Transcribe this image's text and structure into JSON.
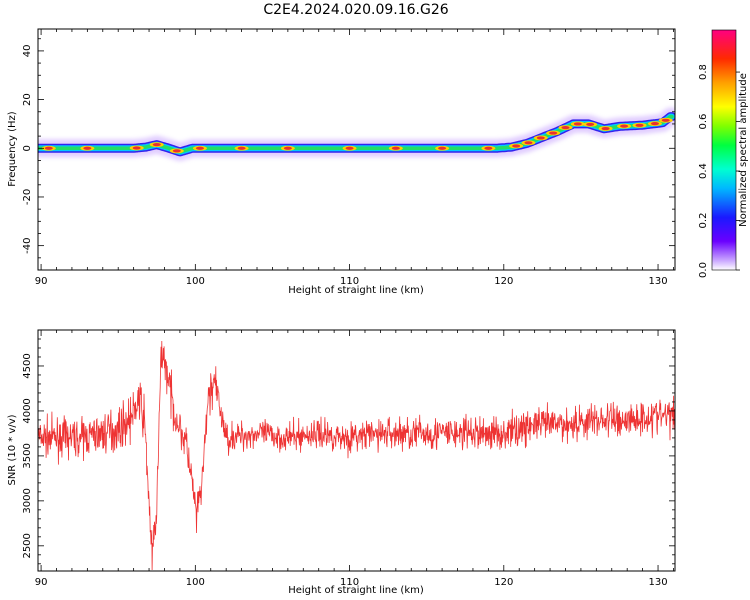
{
  "title": "C2E4.2024.020.09.16.G26",
  "colors": {
    "snr_line": "#ee3333",
    "ridge_outer": "#3322ee",
    "ridge_halo": "#c9a6ff",
    "ridge_mid": "#22dd66",
    "ridge_core": "#e83030",
    "axis": "#000000"
  },
  "chart_data": [
    {
      "type": "heatmap",
      "title": "C2E4.2024.020.09.16.G26",
      "xlabel": "Height of straight line (km)",
      "ylabel": "Frequency (Hz)",
      "xlim": [
        89.8,
        131.1
      ],
      "ylim": [
        -50,
        49
      ],
      "x_ticks": [
        90,
        100,
        110,
        120,
        130
      ],
      "y_ticks": [
        -40,
        -20,
        0,
        20,
        40
      ],
      "colorbar": {
        "label": "Normalized spectral amplitude",
        "range": [
          0,
          0.97
        ],
        "ticks": [
          0.0,
          0.2,
          0.4,
          0.6,
          0.8
        ],
        "colormap": "rainbow (white-violet-blue-cyan-green-yellow-orange-red-magenta)"
      },
      "ridge": {
        "description": "Frequency ridge of maximum spectral amplitude vs height",
        "x": [
          89.8,
          92,
          94,
          96,
          96.8,
          97.5,
          98.3,
          99.0,
          99.8,
          101,
          104,
          108,
          112,
          116,
          119.5,
          120.5,
          121.5,
          122.5,
          123.5,
          124.5,
          125.5,
          126.5,
          127.5,
          129,
          130.3,
          130.8
        ],
        "y": [
          0,
          0,
          0,
          0,
          0.5,
          1.5,
          0,
          -1.5,
          0,
          0,
          0,
          0,
          0,
          0,
          0,
          0.5,
          2,
          4.5,
          7,
          10,
          10,
          8,
          9,
          9.5,
          10.5,
          13
        ]
      }
    },
    {
      "type": "line",
      "xlabel": "Height of straight line (km)",
      "ylabel": "SNR (10 * v/v)",
      "xlim": [
        89.8,
        131.1
      ],
      "ylim": [
        2220,
        4900
      ],
      "x_ticks": [
        90,
        100,
        110,
        120,
        130
      ],
      "y_ticks": [
        2500,
        3000,
        3500,
        4000,
        4500
      ],
      "series": [
        {
          "description": "SNR envelope (noisy trace rendered around this mean with spread)",
          "x": [
            89.8,
            91,
            92.5,
            94,
            95,
            96,
            96.3,
            96.7,
            97.0,
            97.2,
            97.5,
            97.8,
            98.2,
            98.6,
            99.0,
            99.4,
            99.7,
            100.1,
            100.5,
            100.8,
            101.2,
            102,
            104,
            106,
            108,
            110,
            112,
            114,
            116,
            118,
            120,
            122,
            124,
            126,
            128,
            130,
            131.1
          ],
          "y": [
            3700,
            3700,
            3700,
            3750,
            3800,
            3950,
            4150,
            3900,
            3000,
            2350,
            2900,
            4700,
            4400,
            4000,
            3800,
            3650,
            3300,
            2800,
            3300,
            4100,
            4350,
            3700,
            3750,
            3700,
            3750,
            3700,
            3750,
            3750,
            3750,
            3750,
            3750,
            3850,
            3850,
            3900,
            3900,
            3950,
            3950
          ],
          "spread": [
            180,
            180,
            180,
            200,
            200,
            220,
            220,
            220,
            200,
            200,
            220,
            200,
            200,
            200,
            180,
            180,
            180,
            200,
            200,
            200,
            200,
            150,
            140,
            140,
            150,
            150,
            160,
            170,
            170,
            170,
            170,
            170,
            170,
            180,
            180,
            180,
            180
          ]
        }
      ]
    }
  ]
}
